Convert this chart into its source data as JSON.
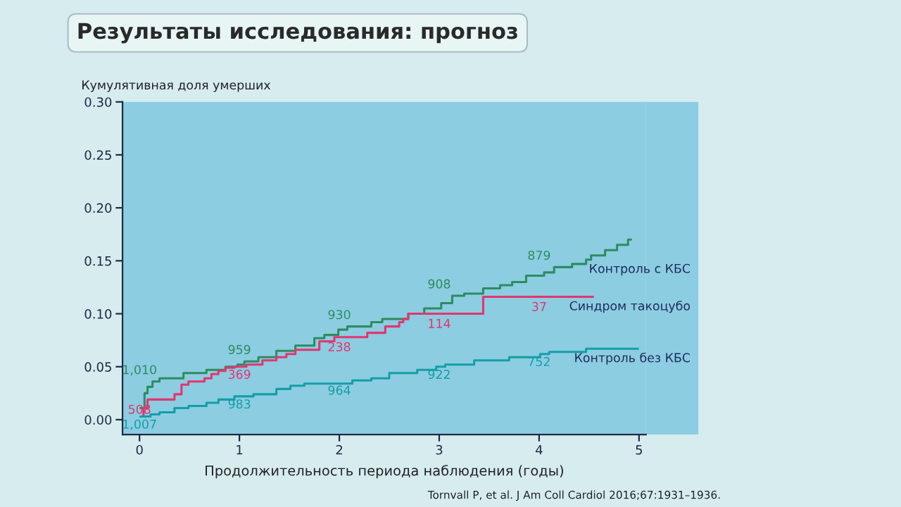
{
  "chart_data": {
    "type": "step",
    "title": "Результаты исследования: прогноз",
    "ylabel": "Кумулятивная доля умерших",
    "xlabel": "Продолжительность периода наблюдения (годы)",
    "xlim": [
      -0.17,
      5.07
    ],
    "ylim": [
      -0.014,
      0.3
    ],
    "xticks": [
      0,
      1,
      2,
      3,
      4,
      5
    ],
    "yticks": [
      {
        "value": 0,
        "label": "0.00"
      },
      {
        "value": 0.05,
        "label": "0.05"
      },
      {
        "value": 0.1,
        "label": "0.10"
      },
      {
        "value": 0.15,
        "label": "0.15"
      },
      {
        "value": 0.2,
        "label": "0.20"
      },
      {
        "value": 0.25,
        "label": "0.25"
      },
      {
        "value": 0.3,
        "label": "0.30"
      }
    ],
    "series": [
      {
        "name": "Контроль с КБС",
        "color": "#2e8c60",
        "x": [
          0.01,
          0.05,
          0.08,
          0.13,
          0.2,
          0.44,
          0.67,
          0.86,
          0.98,
          1.05,
          1.19,
          1.37,
          1.56,
          1.75,
          1.85,
          1.99,
          2.08,
          2.32,
          2.43,
          2.69,
          2.85,
          3.02,
          3.13,
          3.25,
          3.44,
          3.61,
          3.73,
          3.87,
          4.05,
          4.15,
          4.33,
          4.47,
          4.52,
          4.66,
          4.78,
          4.89,
          4.92
        ],
        "values": [
          0.011,
          0.025,
          0.031,
          0.036,
          0.039,
          0.044,
          0.047,
          0.05,
          0.052,
          0.055,
          0.059,
          0.065,
          0.07,
          0.077,
          0.08,
          0.085,
          0.088,
          0.092,
          0.095,
          0.1,
          0.105,
          0.11,
          0.117,
          0.119,
          0.124,
          0.127,
          0.13,
          0.136,
          0.139,
          0.144,
          0.147,
          0.151,
          0.155,
          0.16,
          0.165,
          0.17,
          0.17
        ]
      },
      {
        "name": "Синдром такоцубо",
        "color": "#e3356f",
        "x": [
          0.01,
          0.04,
          0.08,
          0.35,
          0.42,
          0.49,
          0.65,
          0.72,
          0.79,
          0.86,
          0.95,
          1.07,
          1.23,
          1.37,
          1.47,
          1.56,
          1.8,
          1.95,
          2.28,
          2.46,
          2.6,
          2.64,
          2.69,
          3.44,
          4.54
        ],
        "values": [
          0.003,
          0.011,
          0.019,
          0.024,
          0.033,
          0.036,
          0.039,
          0.043,
          0.046,
          0.049,
          0.05,
          0.052,
          0.056,
          0.059,
          0.062,
          0.066,
          0.074,
          0.078,
          0.082,
          0.088,
          0.092,
          0.095,
          0.1,
          0.116,
          0.116
        ]
      },
      {
        "name": "Контроль без КБС",
        "color": "#149ea6",
        "x": [
          0.01,
          0.11,
          0.2,
          0.35,
          0.49,
          0.67,
          0.79,
          0.95,
          1.14,
          1.37,
          1.51,
          1.65,
          2.13,
          2.32,
          2.5,
          2.78,
          2.97,
          3.06,
          3.35,
          3.7,
          4.01,
          4.1,
          4.47,
          4.99
        ],
        "values": [
          0.003,
          0.005,
          0.007,
          0.011,
          0.013,
          0.016,
          0.019,
          0.022,
          0.024,
          0.029,
          0.032,
          0.034,
          0.037,
          0.039,
          0.044,
          0.047,
          0.05,
          0.052,
          0.056,
          0.059,
          0.062,
          0.064,
          0.067,
          0.067
        ]
      }
    ],
    "annotations": [
      "1,010",
      "959",
      "930",
      "908",
      "879",
      "508",
      "369",
      "238",
      "114",
      "37",
      "1,007",
      "983",
      "964",
      "922",
      "752",
      "Tornvall P, et al. J Am Coll Cardiol 2016;67:1931–1936."
    ]
  }
}
